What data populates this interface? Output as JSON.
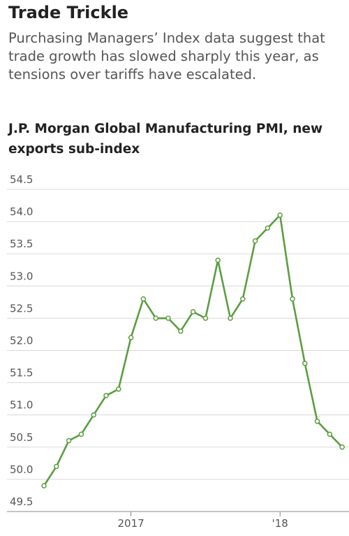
{
  "chart_data": {
    "type": "line",
    "title": "Trade Trickle",
    "subtitle": "Purchasing Managers’ Index data suggest that trade growth has slowed sharply this year, as tensions over tariffs have escalated.",
    "chart_title": "J.P. Morgan Global Manufacturing PMI, new exports sub-index",
    "categories": [
      null,
      null,
      null,
      null,
      null,
      null,
      null,
      "2017",
      null,
      null,
      null,
      null,
      null,
      null,
      null,
      null,
      null,
      null,
      null,
      "'18",
      null,
      null,
      null,
      null,
      null
    ],
    "series": [
      {
        "name": "New exports sub-index",
        "color": "#5a9e3f",
        "values": [
          49.9,
          50.2,
          50.6,
          50.7,
          51.0,
          51.3,
          51.4,
          52.2,
          52.8,
          52.5,
          52.5,
          52.3,
          52.6,
          52.5,
          53.4,
          52.5,
          52.8,
          53.7,
          53.9,
          54.1,
          52.8,
          51.8,
          50.9,
          50.7,
          50.5
        ]
      }
    ],
    "ylim": [
      49.5,
      54.5
    ],
    "yticks": [
      49.5,
      {
        "value": 50,
        "label": "50.0"
      },
      50.5,
      {
        "value": 51,
        "label": "51.0"
      },
      51.5,
      {
        "value": 52,
        "label": "52.0"
      },
      52.5,
      {
        "value": 53,
        "label": "53.0"
      },
      53.5,
      {
        "value": 54,
        "label": "54.0"
      },
      54.5
    ],
    "grid": true
  }
}
